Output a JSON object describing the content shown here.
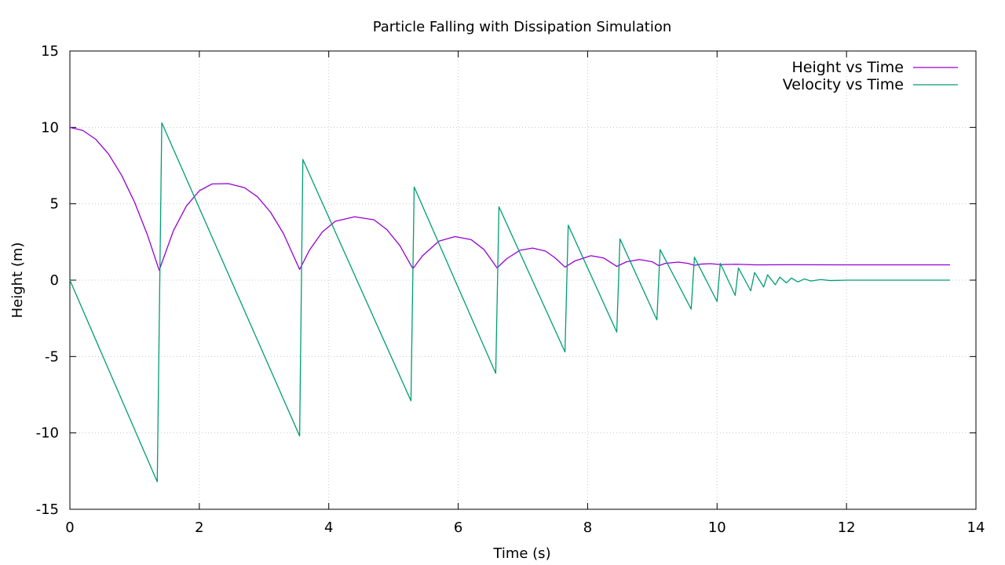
{
  "chart_data": {
    "type": "line",
    "title": "Particle Falling with Dissipation Simulation",
    "xlabel": "Time (s)",
    "ylabel": "Height (m)",
    "xlim": [
      0,
      14
    ],
    "ylim": [
      -15,
      15
    ],
    "x_ticks": [
      0,
      2,
      4,
      6,
      8,
      10,
      12,
      14
    ],
    "y_ticks": [
      -15,
      -10,
      -5,
      0,
      5,
      10,
      15
    ],
    "grid": true,
    "legend_position": "top-right",
    "series": [
      {
        "name": "Height vs Time",
        "color": "#9400d3",
        "points": [
          [
            0,
            10
          ],
          [
            0.2,
            9.8
          ],
          [
            0.4,
            9.22
          ],
          [
            0.6,
            8.24
          ],
          [
            0.8,
            6.86
          ],
          [
            1.0,
            5.1
          ],
          [
            1.2,
            2.94
          ],
          [
            1.38,
            0.65
          ],
          [
            1.6,
            3.24
          ],
          [
            1.8,
            4.85
          ],
          [
            2.0,
            5.85
          ],
          [
            2.2,
            6.3
          ],
          [
            2.45,
            6.32
          ],
          [
            2.7,
            6.05
          ],
          [
            2.9,
            5.45
          ],
          [
            3.1,
            4.45
          ],
          [
            3.3,
            3.05
          ],
          [
            3.55,
            0.7
          ],
          [
            3.7,
            1.95
          ],
          [
            3.9,
            3.15
          ],
          [
            4.1,
            3.85
          ],
          [
            4.4,
            4.15
          ],
          [
            4.7,
            3.95
          ],
          [
            4.9,
            3.3
          ],
          [
            5.1,
            2.25
          ],
          [
            5.3,
            0.75
          ],
          [
            5.45,
            1.6
          ],
          [
            5.7,
            2.55
          ],
          [
            5.95,
            2.85
          ],
          [
            6.2,
            2.65
          ],
          [
            6.4,
            2.0
          ],
          [
            6.6,
            0.8
          ],
          [
            6.75,
            1.4
          ],
          [
            6.95,
            1.95
          ],
          [
            7.15,
            2.1
          ],
          [
            7.35,
            1.9
          ],
          [
            7.5,
            1.45
          ],
          [
            7.65,
            0.85
          ],
          [
            7.8,
            1.25
          ],
          [
            8.05,
            1.6
          ],
          [
            8.25,
            1.45
          ],
          [
            8.45,
            0.9
          ],
          [
            8.6,
            1.2
          ],
          [
            8.8,
            1.35
          ],
          [
            9.0,
            1.2
          ],
          [
            9.1,
            0.95
          ],
          [
            9.2,
            1.1
          ],
          [
            9.4,
            1.18
          ],
          [
            9.55,
            1.1
          ],
          [
            9.65,
            0.97
          ],
          [
            9.75,
            1.05
          ],
          [
            9.9,
            1.08
          ],
          [
            10.05,
            1.02
          ],
          [
            10.3,
            1.04
          ],
          [
            10.6,
            1.0
          ],
          [
            11.0,
            1.01
          ],
          [
            12.0,
            1.0
          ],
          [
            13.6,
            1.0
          ]
        ]
      },
      {
        "name": "Velocity vs Time",
        "color": "#009e73",
        "points": [
          [
            0,
            0
          ],
          [
            1.35,
            -13.2
          ],
          [
            1.42,
            10.3
          ],
          [
            3.55,
            -10.2
          ],
          [
            3.6,
            7.9
          ],
          [
            5.27,
            -7.9
          ],
          [
            5.32,
            6.1
          ],
          [
            6.58,
            -6.1
          ],
          [
            6.63,
            4.8
          ],
          [
            7.65,
            -4.7
          ],
          [
            7.7,
            3.6
          ],
          [
            8.45,
            -3.4
          ],
          [
            8.5,
            2.7
          ],
          [
            9.07,
            -2.6
          ],
          [
            9.12,
            2.0
          ],
          [
            9.6,
            -1.9
          ],
          [
            9.65,
            1.5
          ],
          [
            10.0,
            -1.4
          ],
          [
            10.05,
            1.1
          ],
          [
            10.28,
            -1.0
          ],
          [
            10.33,
            0.8
          ],
          [
            10.52,
            -0.7
          ],
          [
            10.58,
            0.5
          ],
          [
            10.72,
            -0.45
          ],
          [
            10.78,
            0.35
          ],
          [
            10.9,
            -0.3
          ],
          [
            10.97,
            0.2
          ],
          [
            11.07,
            -0.18
          ],
          [
            11.15,
            0.14
          ],
          [
            11.25,
            -0.12
          ],
          [
            11.35,
            0.08
          ],
          [
            11.45,
            -0.06
          ],
          [
            11.6,
            0.04
          ],
          [
            11.75,
            -0.03
          ],
          [
            12.0,
            0.0
          ],
          [
            13.6,
            0.0
          ]
        ]
      }
    ]
  }
}
